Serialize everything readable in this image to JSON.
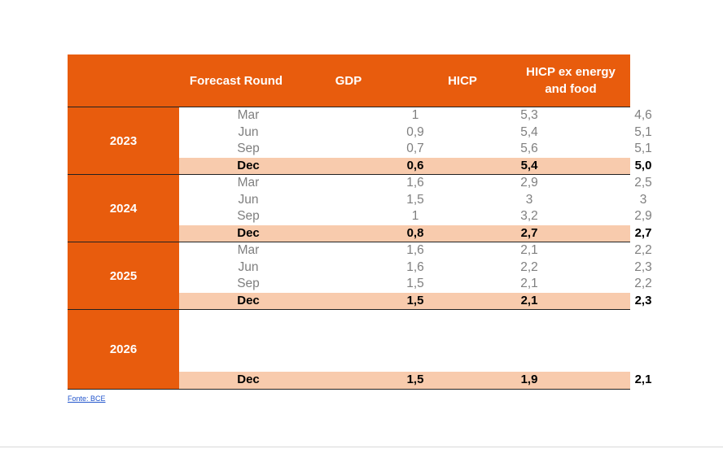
{
  "header": {
    "forecast_round": "Forecast Round",
    "gdp": "GDP",
    "hicp": "HICP",
    "hicp_core_line1": "HICP ex energy",
    "hicp_core_line2": "and food"
  },
  "groups": [
    {
      "year": "2023",
      "rows": [
        {
          "round": "Mar",
          "gdp": "1",
          "hicp": "5,3",
          "core": "4,6"
        },
        {
          "round": "Jun",
          "gdp": "0,9",
          "hicp": "5,4",
          "core": "5,1"
        },
        {
          "round": "Sep",
          "gdp": "0,7",
          "hicp": "5,6",
          "core": "5,1"
        },
        {
          "round": "Dec",
          "gdp": "0,6",
          "hicp": "5,4",
          "core": "5,0"
        }
      ]
    },
    {
      "year": "2024",
      "rows": [
        {
          "round": "Mar",
          "gdp": "1,6",
          "hicp": "2,9",
          "core": "2,5"
        },
        {
          "round": "Jun",
          "gdp": "1,5",
          "hicp": "3",
          "core": "3"
        },
        {
          "round": "Sep",
          "gdp": "1",
          "hicp": "3,2",
          "core": "2,9"
        },
        {
          "round": "Dec",
          "gdp": "0,8",
          "hicp": "2,7",
          "core": "2,7"
        }
      ]
    },
    {
      "year": "2025",
      "rows": [
        {
          "round": "Mar",
          "gdp": "1,6",
          "hicp": "2,1",
          "core": "2,2"
        },
        {
          "round": "Jun",
          "gdp": "1,6",
          "hicp": "2,2",
          "core": "2,3"
        },
        {
          "round": "Sep",
          "gdp": "1,5",
          "hicp": "2,1",
          "core": "2,2"
        },
        {
          "round": "Dec",
          "gdp": "1,5",
          "hicp": "2,1",
          "core": "2,3"
        }
      ]
    },
    {
      "year": "2026",
      "rows": [
        {
          "round": "Dec",
          "gdp": "1,5",
          "hicp": "1,9",
          "core": "2,1"
        }
      ]
    }
  ],
  "source": "Fonte: BCE"
}
